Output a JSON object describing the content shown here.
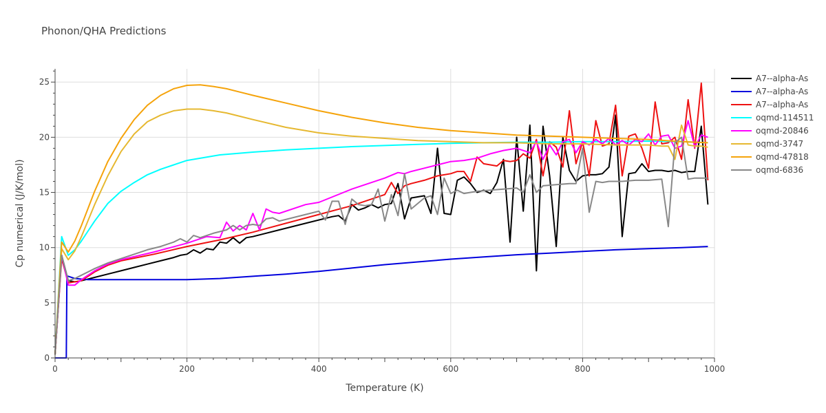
{
  "chart_data": {
    "type": "line",
    "title": "Phonon/QHA Predictions",
    "xlabel": "Temperature (K)",
    "ylabel": "Cp numerical (J/K/mol)",
    "xlim": [
      0,
      1000
    ],
    "ylim": [
      0,
      26.2
    ],
    "xticks": [
      0,
      200,
      400,
      600,
      800,
      1000
    ],
    "yticks": [
      0,
      5,
      10,
      15,
      20,
      25
    ],
    "grid": true,
    "legend_position": "right",
    "series": [
      {
        "name": "A7--alpha-As",
        "color": "#000000",
        "x": [
          0,
          10,
          20,
          30,
          40,
          60,
          80,
          100,
          120,
          140,
          160,
          180,
          190,
          200,
          210,
          220,
          230,
          240,
          250,
          260,
          270,
          280,
          290,
          300,
          340,
          380,
          420,
          430,
          440,
          450,
          460,
          470,
          480,
          490,
          500,
          510,
          520,
          530,
          540,
          560,
          570,
          580,
          590,
          600,
          610,
          620,
          630,
          640,
          650,
          660,
          670,
          680,
          690,
          700,
          710,
          720,
          730,
          740,
          750,
          760,
          770,
          780,
          790,
          800,
          810,
          820,
          830,
          840,
          850,
          860,
          870,
          880,
          890,
          900,
          910,
          920,
          930,
          940,
          950,
          960,
          970,
          980,
          990
        ],
        "y": [
          0.3,
          9.3,
          7.0,
          6.9,
          7.0,
          7.3,
          7.6,
          7.9,
          8.2,
          8.5,
          8.8,
          9.1,
          9.3,
          9.4,
          9.8,
          9.5,
          9.9,
          9.8,
          10.5,
          10.4,
          10.9,
          10.4,
          10.9,
          11.0,
          11.6,
          12.2,
          12.8,
          12.9,
          12.4,
          13.9,
          13.4,
          13.6,
          13.9,
          13.6,
          13.9,
          14.0,
          15.8,
          12.6,
          14.5,
          14.7,
          13.1,
          19.0,
          13.1,
          13.0,
          16.1,
          16.4,
          15.8,
          15.0,
          15.2,
          14.9,
          15.9,
          18.0,
          10.5,
          20.0,
          13.3,
          21.1,
          7.9,
          21.0,
          16.5,
          10.1,
          20.0,
          17.0,
          16.0,
          16.5,
          16.6,
          16.6,
          16.7,
          17.3,
          22.0,
          11.0,
          16.7,
          16.8,
          17.6,
          16.9,
          17.0,
          17.0,
          16.9,
          17.0,
          16.8,
          16.9,
          16.9,
          21.0,
          13.9
        ]
      },
      {
        "name": "A7--alpha-As",
        "color": "#0000dd",
        "x": [
          0,
          10,
          17,
          18,
          20,
          30,
          50,
          100,
          150,
          200,
          250,
          300,
          350,
          400,
          450,
          500,
          550,
          600,
          650,
          700,
          750,
          800,
          850,
          900,
          950,
          990
        ],
        "y": [
          0,
          0,
          0,
          7.4,
          7.4,
          7.2,
          7.1,
          7.1,
          7.1,
          7.1,
          7.2,
          7.4,
          7.6,
          7.85,
          8.15,
          8.45,
          8.7,
          8.95,
          9.15,
          9.35,
          9.5,
          9.65,
          9.8,
          9.9,
          10.0,
          10.1
        ]
      },
      {
        "name": "A7--alpha-As",
        "color": "#ee1111",
        "x": [
          0,
          10,
          20,
          40,
          60,
          80,
          100,
          150,
          200,
          250,
          300,
          350,
          400,
          450,
          500,
          510,
          520,
          530,
          540,
          560,
          580,
          600,
          610,
          620,
          630,
          640,
          650,
          660,
          670,
          680,
          690,
          700,
          710,
          720,
          730,
          740,
          750,
          760,
          770,
          780,
          790,
          800,
          810,
          820,
          830,
          840,
          850,
          860,
          870,
          880,
          890,
          900,
          910,
          920,
          930,
          940,
          950,
          960,
          970,
          980,
          990
        ],
        "y": [
          0.3,
          9.0,
          6.8,
          7.0,
          7.8,
          8.4,
          8.8,
          9.4,
          10.1,
          10.7,
          11.4,
          12.2,
          13.0,
          13.8,
          14.8,
          15.9,
          14.9,
          15.6,
          15.8,
          16.1,
          16.5,
          16.7,
          16.9,
          16.9,
          16.0,
          18.2,
          17.6,
          17.5,
          17.4,
          17.9,
          17.8,
          17.9,
          18.5,
          18.1,
          19.8,
          16.5,
          19.6,
          19.1,
          17.3,
          22.4,
          17.6,
          19.6,
          16.5,
          21.5,
          19.2,
          19.4,
          22.9,
          16.5,
          20.1,
          20.3,
          19.0,
          17.2,
          23.2,
          19.4,
          19.5,
          20.0,
          18.0,
          23.4,
          19.0,
          24.9,
          16.1
        ]
      },
      {
        "name": "oqmd-114511",
        "color": "#00ffff",
        "x": [
          0,
          10,
          20,
          30,
          40,
          60,
          80,
          100,
          120,
          140,
          160,
          180,
          200,
          250,
          300,
          350,
          400,
          450,
          500,
          550,
          600,
          650,
          700,
          750,
          800,
          850,
          900,
          950,
          990
        ],
        "y": [
          0.3,
          11.0,
          9.3,
          9.8,
          10.6,
          12.4,
          14.0,
          15.1,
          15.9,
          16.6,
          17.1,
          17.5,
          17.9,
          18.4,
          18.65,
          18.85,
          19.0,
          19.15,
          19.25,
          19.35,
          19.45,
          19.5,
          19.55,
          19.55,
          19.6,
          19.6,
          19.65,
          19.6,
          19.5
        ]
      },
      {
        "name": "oqmd-20846",
        "color": "#ff00ff",
        "x": [
          0,
          10,
          20,
          30,
          40,
          60,
          80,
          100,
          150,
          200,
          230,
          250,
          260,
          270,
          280,
          290,
          300,
          310,
          320,
          330,
          340,
          380,
          400,
          450,
          500,
          520,
          530,
          540,
          560,
          580,
          600,
          620,
          640,
          660,
          680,
          700,
          720,
          730,
          740,
          750,
          760,
          770,
          780,
          790,
          800,
          810,
          820,
          830,
          840,
          850,
          860,
          870,
          880,
          890,
          900,
          910,
          920,
          930,
          940,
          950,
          960,
          970,
          980,
          990
        ],
        "y": [
          0.3,
          9.3,
          6.6,
          6.6,
          7.1,
          7.9,
          8.5,
          8.9,
          9.6,
          10.4,
          11.0,
          10.9,
          12.3,
          11.5,
          12.0,
          11.6,
          13.1,
          11.6,
          13.5,
          13.2,
          13.1,
          13.9,
          14.1,
          15.3,
          16.3,
          16.8,
          16.7,
          16.9,
          17.2,
          17.5,
          17.8,
          17.9,
          18.1,
          18.5,
          18.8,
          19.0,
          18.6,
          19.6,
          18.0,
          19.3,
          18.4,
          19.6,
          19.8,
          18.6,
          19.6,
          19.3,
          19.8,
          19.4,
          19.9,
          19.3,
          19.7,
          19.3,
          19.8,
          19.6,
          20.3,
          19.3,
          20.1,
          20.2,
          19.0,
          19.2,
          21.5,
          19.1,
          20.2,
          20.0
        ]
      },
      {
        "name": "oqmd-3747",
        "color": "#e6b830",
        "x": [
          0,
          10,
          20,
          30,
          40,
          60,
          80,
          100,
          120,
          140,
          160,
          180,
          200,
          220,
          240,
          260,
          280,
          300,
          350,
          400,
          450,
          500,
          550,
          600,
          650,
          700,
          750,
          800,
          850,
          900,
          920,
          930,
          940,
          950,
          960,
          970,
          980,
          990
        ],
        "y": [
          0.3,
          9.9,
          8.9,
          9.7,
          11.0,
          13.9,
          16.5,
          18.7,
          20.3,
          21.4,
          22.0,
          22.4,
          22.55,
          22.55,
          22.4,
          22.2,
          21.9,
          21.6,
          20.9,
          20.4,
          20.1,
          19.9,
          19.7,
          19.6,
          19.5,
          19.5,
          19.4,
          19.4,
          19.3,
          19.3,
          19.2,
          19.2,
          18.0,
          21.1,
          19.3,
          19.2,
          19.2,
          19.1
        ]
      },
      {
        "name": "oqmd-47818",
        "color": "#f5a30a",
        "x": [
          0,
          10,
          20,
          30,
          40,
          60,
          80,
          100,
          120,
          140,
          160,
          180,
          200,
          220,
          240,
          260,
          280,
          300,
          350,
          400,
          450,
          500,
          550,
          600,
          650,
          700,
          750,
          800,
          850,
          900,
          950,
          990
        ],
        "y": [
          0.3,
          10.5,
          9.6,
          10.6,
          12.0,
          15.1,
          17.8,
          19.9,
          21.6,
          22.9,
          23.8,
          24.4,
          24.7,
          24.75,
          24.6,
          24.4,
          24.1,
          23.8,
          23.1,
          22.4,
          21.8,
          21.3,
          20.9,
          20.6,
          20.4,
          20.2,
          20.1,
          20.0,
          19.9,
          19.8,
          19.6,
          19.5
        ]
      },
      {
        "name": "oqmd-6836",
        "color": "#888888",
        "x": [
          0,
          10,
          20,
          30,
          40,
          60,
          80,
          100,
          120,
          140,
          160,
          180,
          190,
          200,
          210,
          220,
          240,
          260,
          270,
          280,
          290,
          300,
          310,
          320,
          330,
          340,
          380,
          400,
          410,
          420,
          430,
          440,
          450,
          460,
          470,
          480,
          490,
          500,
          510,
          520,
          530,
          540,
          560,
          570,
          580,
          590,
          600,
          610,
          620,
          640,
          660,
          680,
          700,
          710,
          720,
          730,
          740,
          760,
          780,
          790,
          800,
          810,
          820,
          830,
          840,
          850,
          860,
          880,
          900,
          920,
          930,
          940,
          950,
          960,
          970,
          980,
          990
        ],
        "y": [
          0.3,
          9.3,
          7.0,
          7.2,
          7.5,
          8.1,
          8.6,
          9.0,
          9.4,
          9.8,
          10.1,
          10.5,
          10.8,
          10.5,
          11.1,
          10.9,
          11.3,
          11.6,
          12.0,
          11.6,
          12.0,
          12.1,
          12.0,
          12.6,
          12.7,
          12.4,
          13.0,
          13.3,
          12.5,
          14.2,
          14.2,
          12.1,
          14.4,
          13.9,
          13.8,
          13.9,
          15.3,
          12.4,
          14.8,
          12.9,
          16.7,
          13.5,
          14.5,
          14.7,
          13.0,
          16.3,
          14.9,
          15.2,
          14.9,
          15.1,
          15.2,
          15.3,
          15.4,
          15.0,
          16.6,
          15.0,
          15.6,
          15.7,
          15.8,
          15.8,
          19.0,
          13.2,
          16.0,
          15.9,
          16.0,
          16.0,
          16.0,
          16.1,
          16.1,
          16.2,
          11.9,
          19.5,
          20.0,
          16.2,
          16.3,
          16.3,
          16.3
        ]
      }
    ]
  }
}
